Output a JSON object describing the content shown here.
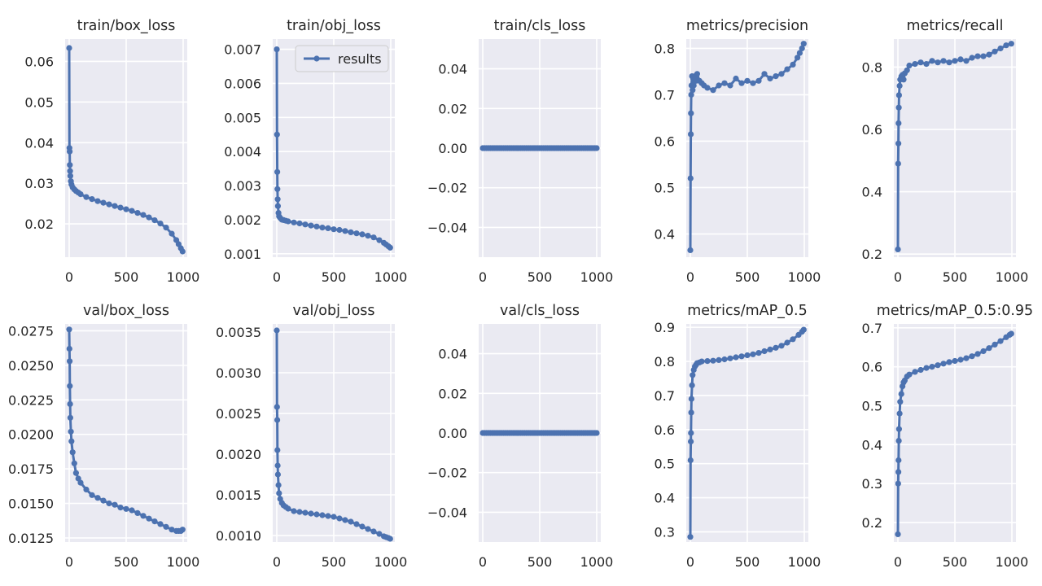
{
  "figure": {
    "series_color": "#4C72B0",
    "background": "#EAEAF2",
    "grid": true,
    "legend": {
      "text": "results",
      "placement": "top-right",
      "panel": "train/obj_loss"
    }
  },
  "chart_data": [
    {
      "type": "line",
      "title": "train/box_loss",
      "xlim": [
        0,
        1000
      ],
      "ylim": [
        0.0118,
        0.0655
      ],
      "xticks": [
        0,
        500,
        1000
      ],
      "xtick_labels": [
        "0",
        "500",
        "1000"
      ],
      "yticks": [
        0.02,
        0.03,
        0.04,
        0.05,
        0.06
      ],
      "ytick_labels": [
        "0.02",
        "0.03",
        "0.04",
        "0.05",
        "0.06"
      ],
      "series": [
        {
          "x": [
            0,
            2,
            4,
            6,
            8,
            10,
            15,
            20,
            30,
            45,
            60,
            80,
            100,
            150,
            200,
            250,
            300,
            350,
            400,
            450,
            500,
            550,
            600,
            650,
            700,
            750,
            800,
            850,
            900,
            940,
            960,
            980,
            995
          ],
          "y": [
            0.0633,
            0.0387,
            0.0378,
            0.0345,
            0.033,
            0.0318,
            0.0305,
            0.0297,
            0.029,
            0.0285,
            0.0281,
            0.0277,
            0.0273,
            0.0266,
            0.0261,
            0.0256,
            0.0252,
            0.0248,
            0.0244,
            0.024,
            0.0236,
            0.0232,
            0.0227,
            0.0222,
            0.0216,
            0.0209,
            0.0201,
            0.0191,
            0.0176,
            0.016,
            0.015,
            0.014,
            0.0132
          ]
        }
      ]
    },
    {
      "type": "line",
      "title": "train/obj_loss",
      "xlim": [
        0,
        1000
      ],
      "ylim": [
        0.0009,
        0.0073
      ],
      "xticks": [
        0,
        500,
        1000
      ],
      "xtick_labels": [
        "0",
        "500",
        "1000"
      ],
      "yticks": [
        0.001,
        0.002,
        0.003,
        0.004,
        0.005,
        0.006,
        0.007
      ],
      "ytick_labels": [
        "0.001",
        "0.002",
        "0.003",
        "0.004",
        "0.005",
        "0.006",
        "0.007"
      ],
      "series": [
        {
          "name": "results",
          "x": [
            0,
            2,
            4,
            6,
            8,
            10,
            15,
            20,
            30,
            45,
            60,
            80,
            100,
            150,
            200,
            250,
            300,
            350,
            400,
            450,
            500,
            550,
            600,
            650,
            700,
            750,
            800,
            850,
            900,
            940,
            960,
            980,
            995
          ],
          "y": [
            0.007,
            0.0045,
            0.0034,
            0.0029,
            0.0026,
            0.0024,
            0.0022,
            0.0021,
            0.00205,
            0.002,
            0.00199,
            0.00197,
            0.00195,
            0.00192,
            0.00189,
            0.00186,
            0.00183,
            0.0018,
            0.00177,
            0.00175,
            0.00172,
            0.0017,
            0.00167,
            0.00163,
            0.0016,
            0.00157,
            0.00153,
            0.00148,
            0.0014,
            0.00132,
            0.00127,
            0.00122,
            0.00118
          ]
        }
      ]
    },
    {
      "type": "line",
      "title": "train/cls_loss",
      "xlim": [
        0,
        1000
      ],
      "ylim": [
        -0.055,
        0.055
      ],
      "xticks": [
        0,
        500,
        1000
      ],
      "xtick_labels": [
        "0",
        "500",
        "1000"
      ],
      "yticks": [
        -0.04,
        -0.02,
        0,
        0.02,
        0.04
      ],
      "ytick_labels": [
        "−0.04",
        "−0.02",
        "0.00",
        "0.02",
        "0.04"
      ],
      "series": [
        {
          "x": [
            0,
            1000
          ],
          "y": [
            0,
            0
          ]
        }
      ]
    },
    {
      "type": "line",
      "title": "metrics/precision",
      "xlim": [
        0,
        1000
      ],
      "ylim": [
        0.35,
        0.82
      ],
      "xticks": [
        0,
        500,
        1000
      ],
      "xtick_labels": [
        "0",
        "500",
        "1000"
      ],
      "yticks": [
        0.4,
        0.5,
        0.6,
        0.7,
        0.8
      ],
      "ytick_labels": [
        "0.4",
        "0.5",
        "0.6",
        "0.7",
        "0.8"
      ],
      "series": [
        {
          "x": [
            0,
            2,
            4,
            6,
            8,
            10,
            15,
            20,
            25,
            30,
            40,
            50,
            60,
            80,
            100,
            120,
            150,
            200,
            250,
            300,
            350,
            400,
            450,
            500,
            550,
            600,
            650,
            700,
            750,
            800,
            850,
            900,
            940,
            960,
            980,
            995
          ],
          "y": [
            0.365,
            0.52,
            0.615,
            0.66,
            0.7,
            0.72,
            0.74,
            0.71,
            0.735,
            0.72,
            0.74,
            0.73,
            0.745,
            0.73,
            0.725,
            0.72,
            0.715,
            0.71,
            0.72,
            0.725,
            0.72,
            0.735,
            0.725,
            0.73,
            0.725,
            0.73,
            0.745,
            0.735,
            0.74,
            0.745,
            0.755,
            0.765,
            0.78,
            0.79,
            0.8,
            0.81
          ]
        }
      ]
    },
    {
      "type": "line",
      "title": "metrics/recall",
      "xlim": [
        0,
        1000
      ],
      "ylim": [
        0.19,
        0.89
      ],
      "xticks": [
        0,
        500,
        1000
      ],
      "xtick_labels": [
        "0",
        "500",
        "1000"
      ],
      "yticks": [
        0.2,
        0.4,
        0.6,
        0.8
      ],
      "ytick_labels": [
        "0.2",
        "0.4",
        "0.6",
        "0.8"
      ],
      "series": [
        {
          "x": [
            0,
            2,
            4,
            6,
            8,
            10,
            15,
            20,
            30,
            40,
            50,
            60,
            80,
            100,
            150,
            200,
            250,
            300,
            350,
            400,
            450,
            500,
            550,
            600,
            650,
            700,
            750,
            800,
            850,
            900,
            950,
            995
          ],
          "y": [
            0.215,
            0.49,
            0.555,
            0.62,
            0.67,
            0.71,
            0.74,
            0.76,
            0.77,
            0.775,
            0.76,
            0.78,
            0.79,
            0.805,
            0.81,
            0.815,
            0.81,
            0.82,
            0.815,
            0.82,
            0.815,
            0.82,
            0.825,
            0.82,
            0.83,
            0.835,
            0.835,
            0.84,
            0.85,
            0.86,
            0.87,
            0.875
          ]
        }
      ]
    },
    {
      "type": "line",
      "title": "val/box_loss",
      "xlim": [
        0,
        1000
      ],
      "ylim": [
        0.0122,
        0.028
      ],
      "xticks": [
        0,
        500,
        1000
      ],
      "xtick_labels": [
        "0",
        "500",
        "1000"
      ],
      "yticks": [
        0.0125,
        0.015,
        0.0175,
        0.02,
        0.0225,
        0.025,
        0.0275
      ],
      "ytick_labels": [
        "0.0125",
        "0.0150",
        "0.0175",
        "0.0200",
        "0.0225",
        "0.0250",
        "0.0275"
      ],
      "series": [
        {
          "x": [
            0,
            2,
            4,
            6,
            8,
            10,
            15,
            20,
            30,
            45,
            60,
            80,
            100,
            150,
            200,
            250,
            300,
            350,
            400,
            450,
            500,
            550,
            600,
            650,
            700,
            750,
            800,
            850,
            900,
            940,
            960,
            980,
            995
          ],
          "y": [
            0.0276,
            0.0262,
            0.0253,
            0.0235,
            0.0222,
            0.0212,
            0.0202,
            0.0195,
            0.0187,
            0.0179,
            0.0172,
            0.0168,
            0.0165,
            0.016,
            0.0156,
            0.0154,
            0.0152,
            0.015,
            0.0149,
            0.0147,
            0.0146,
            0.0145,
            0.0143,
            0.0141,
            0.0139,
            0.0137,
            0.0135,
            0.0133,
            0.0131,
            0.013,
            0.013,
            0.013,
            0.0131
          ]
        }
      ]
    },
    {
      "type": "line",
      "title": "val/obj_loss",
      "xlim": [
        0,
        1000
      ],
      "ylim": [
        0.00092,
        0.0036
      ],
      "xticks": [
        0,
        500,
        1000
      ],
      "xtick_labels": [
        "0",
        "500",
        "1000"
      ],
      "yticks": [
        0.001,
        0.0015,
        0.002,
        0.0025,
        0.003,
        0.0035
      ],
      "ytick_labels": [
        "0.0010",
        "0.0015",
        "0.0020",
        "0.0025",
        "0.0030",
        "0.0035"
      ],
      "series": [
        {
          "x": [
            0,
            2,
            4,
            6,
            8,
            10,
            15,
            20,
            30,
            45,
            60,
            80,
            100,
            150,
            200,
            250,
            300,
            350,
            400,
            450,
            500,
            550,
            600,
            650,
            700,
            750,
            800,
            850,
            900,
            940,
            960,
            980,
            995
          ],
          "y": [
            0.00352,
            0.00258,
            0.00242,
            0.00205,
            0.00186,
            0.00175,
            0.00162,
            0.00152,
            0.00145,
            0.0014,
            0.00137,
            0.00135,
            0.00133,
            0.0013,
            0.00129,
            0.00128,
            0.00127,
            0.00126,
            0.00125,
            0.00124,
            0.00123,
            0.00121,
            0.00119,
            0.00117,
            0.00114,
            0.00111,
            0.00108,
            0.00105,
            0.00102,
            0.00099,
            0.00098,
            0.00097,
            0.00096
          ]
        }
      ]
    },
    {
      "type": "line",
      "title": "val/cls_loss",
      "xlim": [
        0,
        1000
      ],
      "ylim": [
        -0.055,
        0.055
      ],
      "xticks": [
        0,
        500,
        1000
      ],
      "xtick_labels": [
        "0",
        "500",
        "1000"
      ],
      "yticks": [
        -0.04,
        -0.02,
        0,
        0.02,
        0.04
      ],
      "ytick_labels": [
        "−0.04",
        "−0.02",
        "0.00",
        "0.02",
        "0.04"
      ],
      "series": [
        {
          "x": [
            0,
            1000
          ],
          "y": [
            0,
            0
          ]
        }
      ]
    },
    {
      "type": "line",
      "title": "metrics/mAP_0.5",
      "xlim": [
        0,
        1000
      ],
      "ylim": [
        0.27,
        0.91
      ],
      "xticks": [
        0,
        500,
        1000
      ],
      "xtick_labels": [
        "0",
        "500",
        "1000"
      ],
      "yticks": [
        0.3,
        0.4,
        0.5,
        0.6,
        0.7,
        0.8,
        0.9
      ],
      "ytick_labels": [
        "0.3",
        "0.4",
        "0.5",
        "0.6",
        "0.7",
        "0.8",
        "0.9"
      ],
      "series": [
        {
          "x": [
            0,
            2,
            4,
            6,
            8,
            10,
            15,
            20,
            30,
            40,
            50,
            60,
            80,
            100,
            150,
            200,
            250,
            300,
            350,
            400,
            450,
            500,
            550,
            600,
            650,
            700,
            750,
            800,
            850,
            900,
            950,
            980,
            995
          ],
          "y": [
            0.285,
            0.51,
            0.565,
            0.59,
            0.65,
            0.69,
            0.73,
            0.76,
            0.775,
            0.785,
            0.79,
            0.795,
            0.797,
            0.8,
            0.801,
            0.802,
            0.804,
            0.806,
            0.809,
            0.812,
            0.815,
            0.818,
            0.821,
            0.825,
            0.83,
            0.835,
            0.84,
            0.846,
            0.855,
            0.865,
            0.878,
            0.887,
            0.893
          ]
        }
      ]
    },
    {
      "type": "line",
      "title": "metrics/mAP_0.5:0.95",
      "xlim": [
        0,
        1000
      ],
      "ylim": [
        0.15,
        0.71
      ],
      "xticks": [
        0,
        500,
        1000
      ],
      "xtick_labels": [
        "0",
        "500",
        "1000"
      ],
      "yticks": [
        0.2,
        0.3,
        0.4,
        0.5,
        0.6,
        0.7
      ],
      "ytick_labels": [
        "0.2",
        "0.3",
        "0.4",
        "0.5",
        "0.6",
        "0.7"
      ],
      "series": [
        {
          "x": [
            0,
            2,
            4,
            6,
            8,
            10,
            15,
            20,
            30,
            40,
            50,
            60,
            80,
            100,
            150,
            200,
            250,
            300,
            350,
            400,
            450,
            500,
            550,
            600,
            650,
            700,
            750,
            800,
            850,
            900,
            950,
            980,
            995
          ],
          "y": [
            0.17,
            0.3,
            0.33,
            0.36,
            0.41,
            0.44,
            0.48,
            0.51,
            0.53,
            0.55,
            0.56,
            0.565,
            0.575,
            0.58,
            0.587,
            0.592,
            0.597,
            0.6,
            0.604,
            0.608,
            0.612,
            0.615,
            0.618,
            0.622,
            0.627,
            0.633,
            0.64,
            0.648,
            0.657,
            0.666,
            0.676,
            0.682,
            0.685
          ]
        }
      ]
    }
  ]
}
